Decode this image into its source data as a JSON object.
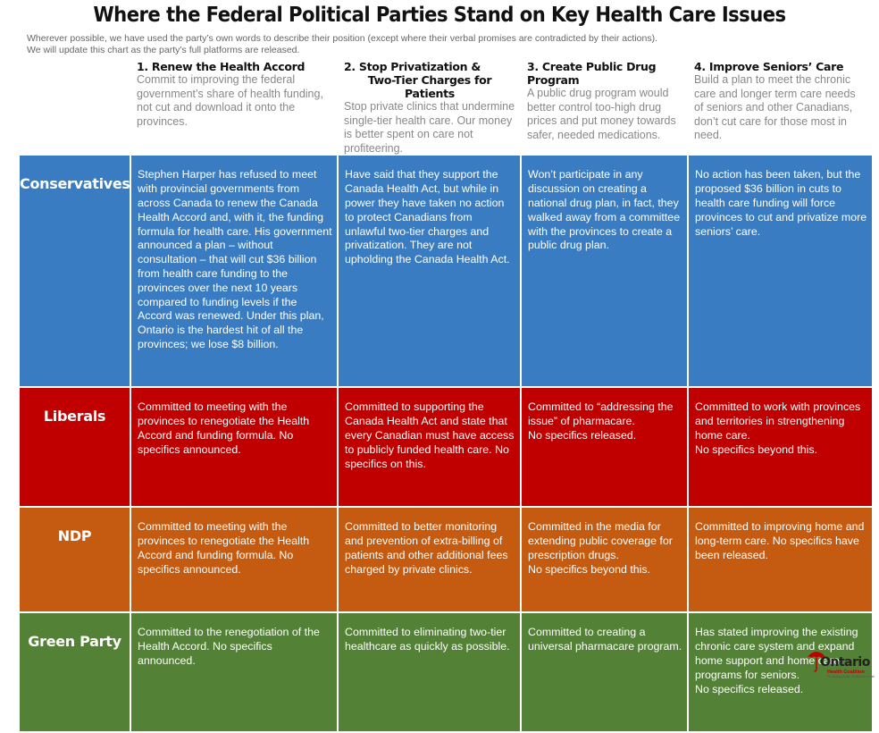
{
  "title": "Where the Federal Political Parties Stand on Key Health Care Issues",
  "subtitle_lines": [
    "Wherever possible, we have used the party’s own words to describe their position (except where their verbal promises are contradicted by their actions).",
    "We will update this chart as the party’s full platforms are released."
  ],
  "issues": [
    {
      "title": "1. Renew the Health Accord",
      "title_line2": "",
      "description": "Commit to improving the federal government’s share of health funding, not cut and download it onto the provinces."
    },
    {
      "title": "2. Stop Privatization &",
      "title_line2": "Two-Tier Charges for Patients",
      "description": "Stop private clinics that undermine single-tier health care. Our money is better spent on care not profiteering."
    },
    {
      "title": "3. Create Public Drug Program",
      "title_line2": "",
      "description": "A public drug program would better control too-high drug prices and put money towards safer, needed medications."
    },
    {
      "title": "4. Improve Seniors’ Care",
      "title_line2": "",
      "description": "Build a plan to meet the chronic care and longer term care needs of seniors and other Canadians, don’t cut care for those most in need."
    }
  ],
  "parties": [
    {
      "name": "Conservatives",
      "color": "#3a7cc1",
      "positions": [
        "Stephen Harper has refused to meet with provincial governments from across Canada to renew the Canada Health Accord and, with it, the funding formula for health care. His government announced a plan – without consultation – that will cut $36 billion from health care funding to the provinces over the next 10 years compared to funding levels if the Accord was renewed. Under this plan, Ontario is the hardest hit of all the provinces; we lose $8 billion.",
        "Have said that they support the Canada Health Act, but while in power they have taken no action to protect Canadians from unlawful two-tier charges and privatization. They are not upholding the Canada Health Act.",
        "Won’t participate in any discussion on creating a national drug plan, in fact, they walked away from a committee with the provinces to create a public drug plan.",
        "No action has been taken, but the proposed $36 billion in cuts to health care funding will force provinces to cut and privatize more seniors’ care."
      ]
    },
    {
      "name": "Liberals",
      "color": "#c00000",
      "positions": [
        "Committed to meeting with the provinces to renegotiate the Health Accord and funding formula. No specifics announced.",
        "Committed to supporting the Canada Health Act and state that every Canadian must have access to publicly funded health care. No specifics on this.",
        "Committed to “addressing the issue” of pharmacare.\nNo specifics released.",
        "Committed to work with provinces and territories in strengthening home care.\nNo specifics beyond this."
      ]
    },
    {
      "name": "NDP",
      "color": "#c55a11",
      "positions": [
        "Committed to meeting with the provinces to renegotiate the Health Accord and funding formula. No specifics announced.",
        "Committed to better monitoring and prevention of extra-billing of patients and other additional fees charged by private clinics.",
        "Committed in the media for extending public coverage for prescription drugs.\nNo specifics beyond this.",
        "Committed to improving home and long-term care. No specifics have been released."
      ]
    },
    {
      "name": "Green Party",
      "color": "#538135",
      "positions": [
        "Committed to the renegotiation of the Health Accord. No specifics announced.",
        "Committed to eliminating two-tier healthcare as quickly as possible.",
        "Committed to creating a universal pharmacare program.",
        "Has stated improving the existing chronic care system and expand home support and home care programs for seniors.\nNo specifics released."
      ]
    }
  ],
  "logo": {
    "name": "Ontario",
    "sub": "Health Coalition",
    "tagline": "Protecting public healthcare for all",
    "icon": "red-umbrella-icon",
    "accent": "#c00000"
  }
}
